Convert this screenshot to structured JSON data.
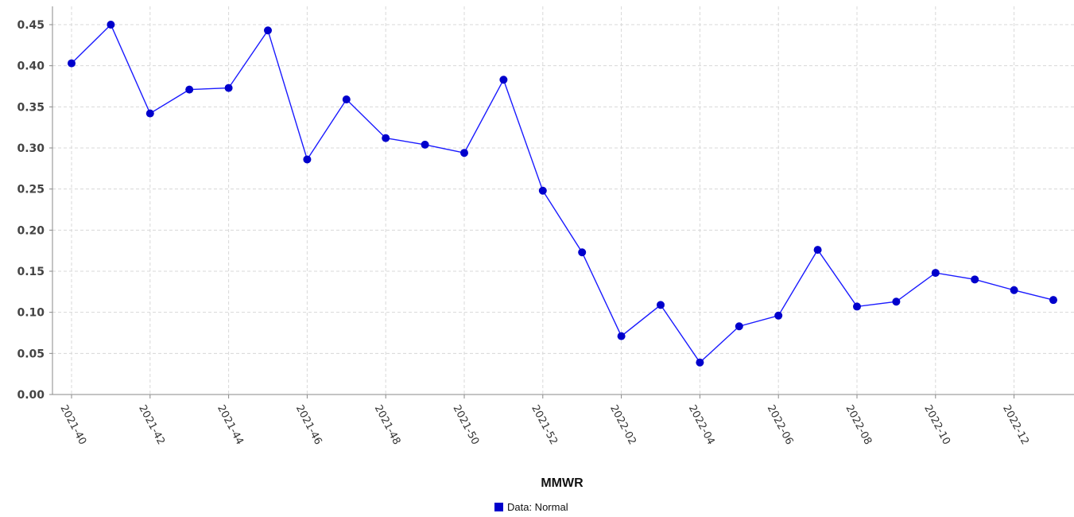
{
  "chart_data": {
    "type": "line",
    "xlabel": "MMWR",
    "ylabel": "",
    "ylim": [
      0,
      0.46
    ],
    "yticks": [
      0.0,
      0.05,
      0.1,
      0.15,
      0.2,
      0.25,
      0.3,
      0.35,
      0.4,
      0.45
    ],
    "grid": true,
    "legend_position": "bottom-center",
    "x": [
      "2021-40",
      "2021-41",
      "2021-42",
      "2021-43",
      "2021-44",
      "2021-45",
      "2021-46",
      "2021-47",
      "2021-48",
      "2021-49",
      "2021-50",
      "2021-51",
      "2021-52",
      "2022-01",
      "2022-02",
      "2022-03",
      "2022-04",
      "2022-05",
      "2022-06",
      "2022-07",
      "2022-08",
      "2022-09",
      "2022-10",
      "2022-11",
      "2022-12",
      "2022-13"
    ],
    "xtick_labels": [
      "2021-40",
      "2021-42",
      "2021-44",
      "2021-46",
      "2021-48",
      "2021-50",
      "2021-52",
      "2022-02",
      "2022-04",
      "2022-06",
      "2022-08",
      "2022-10",
      "2022-12"
    ],
    "series": [
      {
        "name": "Data: Normal",
        "color": "#1a1aff",
        "marker_color": "#0000cc",
        "values": [
          0.403,
          0.45,
          0.342,
          0.371,
          0.373,
          0.443,
          0.286,
          0.359,
          0.312,
          0.304,
          0.294,
          0.383,
          0.248,
          0.173,
          0.071,
          0.109,
          0.039,
          0.083,
          0.096,
          0.176,
          0.107,
          0.113,
          0.148,
          0.14,
          0.127,
          0.115
        ]
      }
    ]
  }
}
